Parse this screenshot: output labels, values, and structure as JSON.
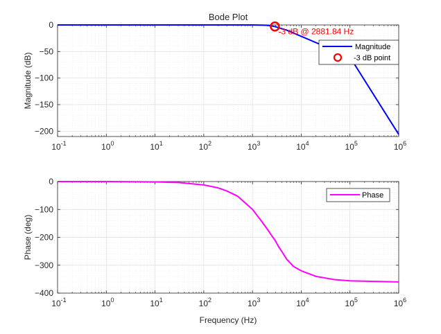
{
  "chart_data": [
    {
      "type": "line",
      "title": "Bode Plot",
      "xlabel": "",
      "ylabel": "Magnitude (dB)",
      "xscale": "log",
      "xlim": [
        0.1,
        1000000
      ],
      "ylim": [
        -210,
        0
      ],
      "x_tick_bases": [
        "10",
        "10",
        "10",
        "10",
        "10",
        "10",
        "10",
        "10"
      ],
      "x_tick_exps": [
        "-1",
        "0",
        "1",
        "2",
        "3",
        "4",
        "5",
        "6"
      ],
      "y_ticks": [
        0,
        -50,
        -100,
        -150,
        -200
      ],
      "y_tick_labels": [
        "0",
        "−50",
        "−100",
        "−150",
        "−200"
      ],
      "grid": true,
      "legend_position": "top-right",
      "series": [
        {
          "name": "Magnitude",
          "color": "#0000ff",
          "x": [
            0.1,
            1,
            10,
            100,
            1000,
            2000,
            2881.84,
            5000,
            10000,
            100000,
            1000000
          ],
          "y": [
            0,
            0,
            0,
            0,
            -0.04,
            -0.6,
            -3,
            -9.7,
            -21.5,
            -60.5,
            -206
          ]
        }
      ],
      "marker": {
        "name": "-3 dB point",
        "color": "#ff0000",
        "x": 2881.84,
        "y": -3
      },
      "annotation": {
        "text": "-3 dB @ 2881.84 Hz",
        "color": "#ff0000"
      }
    },
    {
      "type": "line",
      "title": "",
      "xlabel": "Frequency (Hz)",
      "ylabel": "Phase (deg)",
      "xscale": "log",
      "xlim": [
        0.1,
        1000000
      ],
      "ylim": [
        -400,
        0
      ],
      "x_tick_bases": [
        "10",
        "10",
        "10",
        "10",
        "10",
        "10",
        "10",
        "10"
      ],
      "x_tick_exps": [
        "-1",
        "0",
        "1",
        "2",
        "3",
        "4",
        "5",
        "6"
      ],
      "y_ticks": [
        0,
        -100,
        -200,
        -300,
        -400
      ],
      "y_tick_labels": [
        "0",
        "−100",
        "−200",
        "−300",
        "−400"
      ],
      "grid": true,
      "legend_position": "top-right",
      "series": [
        {
          "name": "Phase",
          "color": "#ff00ff",
          "x": [
            0.1,
            1,
            10,
            30,
            100,
            200,
            300,
            500,
            1000,
            1500,
            2000,
            2500,
            2881.84,
            3500,
            4000,
            5000,
            7000,
            10000,
            20000,
            50000,
            100000,
            1000000
          ],
          "y": [
            0,
            0,
            -1.1,
            -3.5,
            -12,
            -23,
            -34,
            -53,
            -100,
            -140,
            -170,
            -195,
            -210,
            -236,
            -251,
            -278,
            -305,
            -320,
            -340,
            -352,
            -356,
            -360
          ]
        }
      ]
    }
  ]
}
